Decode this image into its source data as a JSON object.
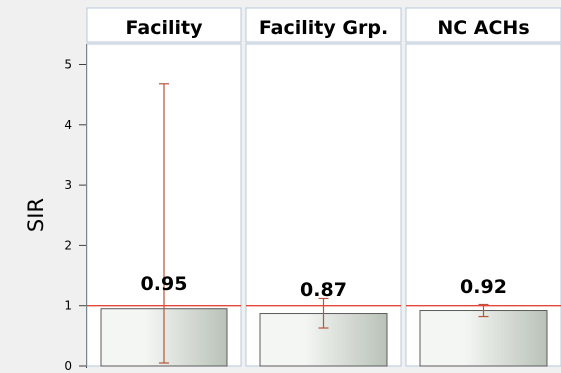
{
  "chart_data": {
    "type": "bar",
    "panels": [
      "Facility",
      "Facility Grp.",
      "NC ACHs"
    ],
    "values": [
      0.95,
      0.87,
      0.92
    ],
    "value_labels": [
      "0.95",
      "0.87",
      "0.92"
    ],
    "ci_lower": [
      0.05,
      0.63,
      0.82
    ],
    "ci_upper": [
      4.68,
      1.12,
      1.02
    ],
    "reference_line": 1,
    "ylabel": "SIR",
    "ylim": [
      0,
      5.5
    ],
    "yticks": [
      0,
      1,
      2,
      3,
      4,
      5
    ],
    "ytick_labels": [
      "0",
      "1",
      "2",
      "3",
      "4",
      "5"
    ],
    "grid": false,
    "legend": "none"
  },
  "colors": {
    "reference_line": "#e4473a",
    "error_bar": "#b8553a",
    "bar_fill_light": "#f4f6f3",
    "bar_fill_dark": "#b9c2b8",
    "bar_stroke": "#5b5b5b",
    "panel_border": "#b8c8dc",
    "background": "#f0f0f0"
  }
}
